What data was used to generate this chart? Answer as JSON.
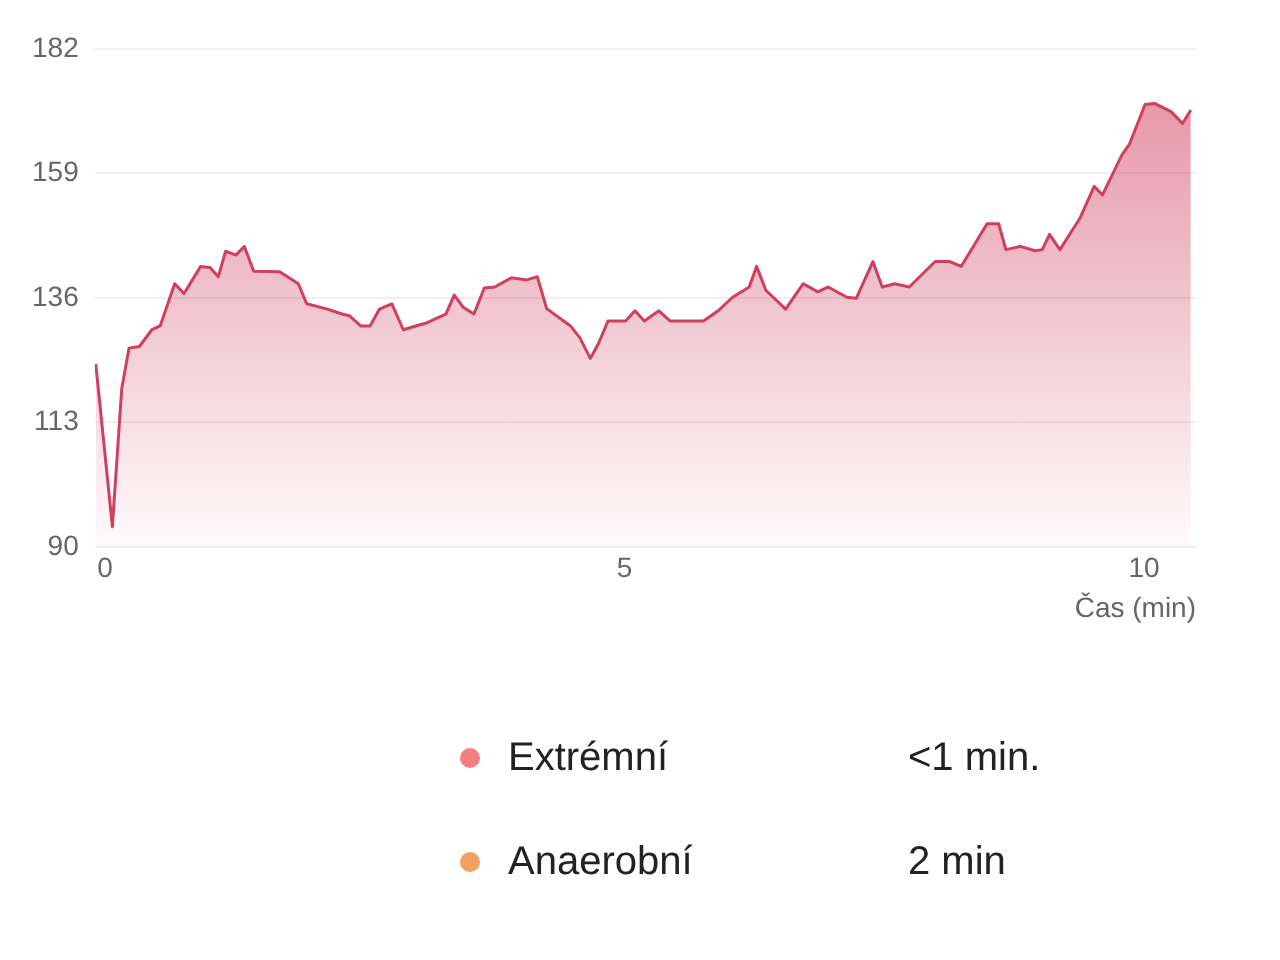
{
  "chart_data": [
    {
      "type": "area",
      "xlabel": "Čas (min)",
      "xlim": [
        -0.1,
        10.5
      ],
      "ylim": [
        90,
        182
      ],
      "xticks": [
        0,
        5,
        10
      ],
      "yticks": [
        90,
        113,
        136,
        159,
        182
      ],
      "grid": "y",
      "marker": "none",
      "legend": false,
      "series": [
        {
          "color": "#d0405e",
          "x": [
            -0.09,
            0.07,
            0.16,
            0.23,
            0.33,
            0.45,
            0.53,
            0.67,
            0.76,
            0.92,
            1.01,
            1.09,
            1.16,
            1.26,
            1.34,
            1.43,
            1.68,
            1.86,
            1.94,
            2.14,
            2.28,
            2.35,
            2.46,
            2.55,
            2.64,
            2.76,
            2.87,
            2.99,
            3.1,
            3.28,
            3.36,
            3.45,
            3.55,
            3.65,
            3.75,
            3.91,
            4.06,
            4.16,
            4.25,
            4.48,
            4.57,
            4.67,
            4.75,
            4.84,
            5.01,
            5.1,
            5.19,
            5.33,
            5.44,
            5.76,
            5.9,
            6.04,
            6.2,
            6.27,
            6.36,
            6.55,
            6.72,
            6.86,
            6.96,
            7.14,
            7.23,
            7.39,
            7.48,
            7.6,
            7.74,
            7.99,
            8.13,
            8.24,
            8.49,
            8.6,
            8.67,
            8.81,
            8.95,
            9.02,
            9.09,
            9.19,
            9.38,
            9.52,
            9.6,
            9.79,
            9.86,
            10.01,
            10.1,
            10.26,
            10.37,
            10.45
          ],
          "values": [
            123.8,
            93.7,
            119.2,
            126.7,
            127,
            130.1,
            130.8,
            138.6,
            136.8,
            141.8,
            141.6,
            139.9,
            144.6,
            143.9,
            145.5,
            140.9,
            140.8,
            138.6,
            134.9,
            133.9,
            133,
            132.7,
            130.8,
            130.8,
            133.9,
            134.9,
            130.1,
            130.8,
            131.4,
            133,
            136.5,
            134.2,
            133,
            137.8,
            138,
            139.7,
            139.3,
            139.9,
            134,
            130.8,
            128.6,
            124.8,
            127.6,
            131.7,
            131.7,
            133.6,
            131.7,
            133.6,
            131.7,
            131.7,
            133.6,
            136.1,
            138,
            141.8,
            137.4,
            133.9,
            138.6,
            137.1,
            138,
            136.1,
            135.9,
            142.7,
            138,
            138.6,
            138,
            142.7,
            142.7,
            141.8,
            149.7,
            149.7,
            144.9,
            145.5,
            144.7,
            144.9,
            147.7,
            144.9,
            150.6,
            156.6,
            155,
            162.5,
            164.4,
            171.7,
            171.9,
            170.4,
            168.2,
            170.7
          ]
        }
      ]
    },
    {
      "type": "other",
      "categories": [
        "Extrémní",
        "Anaerobní"
      ],
      "colors": [
        "#f28080",
        "#f0a060"
      ],
      "annotations": [
        "<1 min.",
        "2 min"
      ]
    }
  ]
}
